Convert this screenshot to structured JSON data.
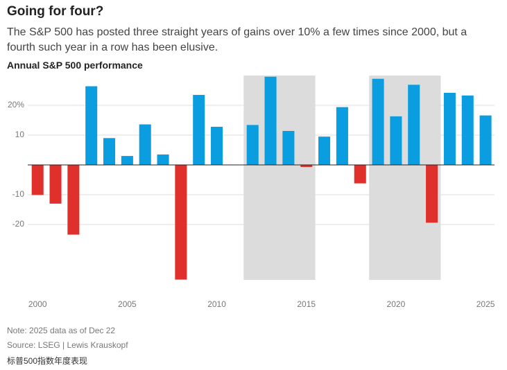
{
  "chart_data": {
    "type": "bar",
    "title": "Going for four?",
    "subtitle": "The S&P 500 has posted three straight years of gains over 10% a few times since 2000, but a fourth such year in a row has been elusive.",
    "chart_title": "Annual S&P 500 performance",
    "notes": [
      "Note: 2025 data as of Dec 22",
      "Source: LSEG | Lewis Krauskopf",
      "标普500指数年度表现"
    ],
    "x": [
      2000,
      2001,
      2002,
      2003,
      2004,
      2005,
      2006,
      2007,
      2008,
      2009,
      2010,
      2011,
      2012,
      2013,
      2014,
      2015,
      2016,
      2017,
      2018,
      2019,
      2020,
      2021,
      2022,
      2023,
      2024,
      2025
    ],
    "values": [
      -10.1,
      -13.0,
      -23.4,
      26.4,
      9.0,
      3.0,
      13.6,
      3.5,
      -38.5,
      23.5,
      12.8,
      0.0,
      13.4,
      29.6,
      11.4,
      -0.7,
      9.5,
      19.4,
      -6.2,
      28.9,
      16.3,
      26.9,
      -19.4,
      24.2,
      23.3,
      16.6
    ],
    "positive_color": "#0a9de0",
    "negative_color": "#e0302b",
    "shaded": [
      [
        2011.5,
        2015.5
      ],
      [
        2018.5,
        2022.5
      ]
    ],
    "xlim": [
      1999.45,
      2025.5
    ],
    "xticks": [
      2000,
      2005,
      2010,
      2015,
      2020,
      2025
    ],
    "ylim": [
      -40,
      30
    ],
    "yticks": [
      {
        "value": 20,
        "label": "20%"
      },
      10,
      -10,
      -20
    ],
    "grid": true
  }
}
